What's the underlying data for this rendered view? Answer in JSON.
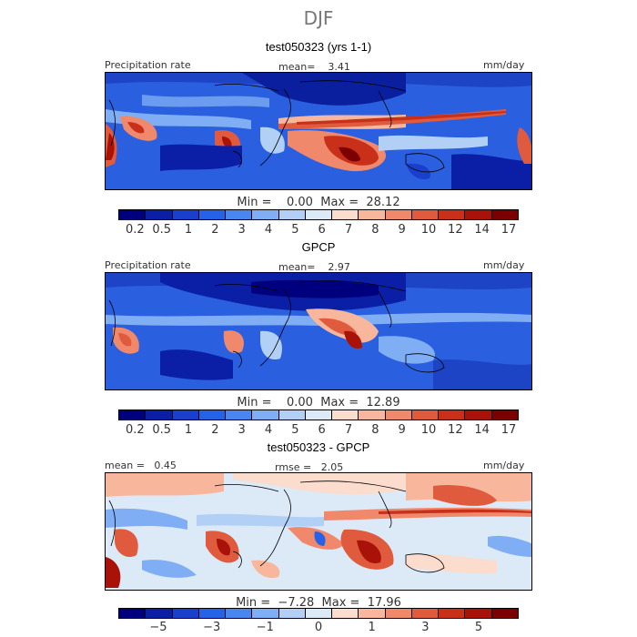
{
  "season": "DJF",
  "panels": [
    {
      "title": "test050323 (yrs 1-1)",
      "left_label": "Precipitation rate",
      "center_label": "mean=    3.41",
      "right_label": "mm/day",
      "min_max": "Min =    0.00  Max =  28.12"
    },
    {
      "title": "GPCP",
      "left_label": "Precipitation rate",
      "center_label": "mean=    2.97",
      "right_label": "mm/day",
      "min_max": "Min =    0.00  Max =  12.89"
    },
    {
      "title": "test050323 - GPCP",
      "left_label": "mean =   0.45",
      "center_label": "rmse =   2.05",
      "right_label": "mm/day",
      "min_max": "Min =  −7.28  Max =  17.96"
    }
  ],
  "colorbar_abs": {
    "colors": [
      "#00007f",
      "#0a1fa6",
      "#1a3fcc",
      "#2463e8",
      "#4a86f0",
      "#80aef4",
      "#b2d0f6",
      "#dce9f7",
      "#fbdccd",
      "#f8b79c",
      "#f0886b",
      "#e05a3d",
      "#c8301a",
      "#a81208",
      "#7c0000"
    ],
    "tick_labels": [
      "0.2",
      "0.5",
      "1",
      "2",
      "3",
      "4",
      "5",
      "6",
      "7",
      "8",
      "9",
      "10",
      "12",
      "14",
      "17"
    ]
  },
  "colorbar_diff": {
    "colors": [
      "#00007f",
      "#0a1fa6",
      "#1a3fcc",
      "#2463e8",
      "#4a86f0",
      "#80aef4",
      "#b2d0f6",
      "#dce9f7",
      "#fbdccd",
      "#f8b79c",
      "#f0886b",
      "#e05a3d",
      "#c8301a",
      "#a81208",
      "#7c0000"
    ],
    "tick_labels": [
      "−5",
      "−3",
      "−1",
      "0",
      "1",
      "3",
      "5"
    ]
  }
}
